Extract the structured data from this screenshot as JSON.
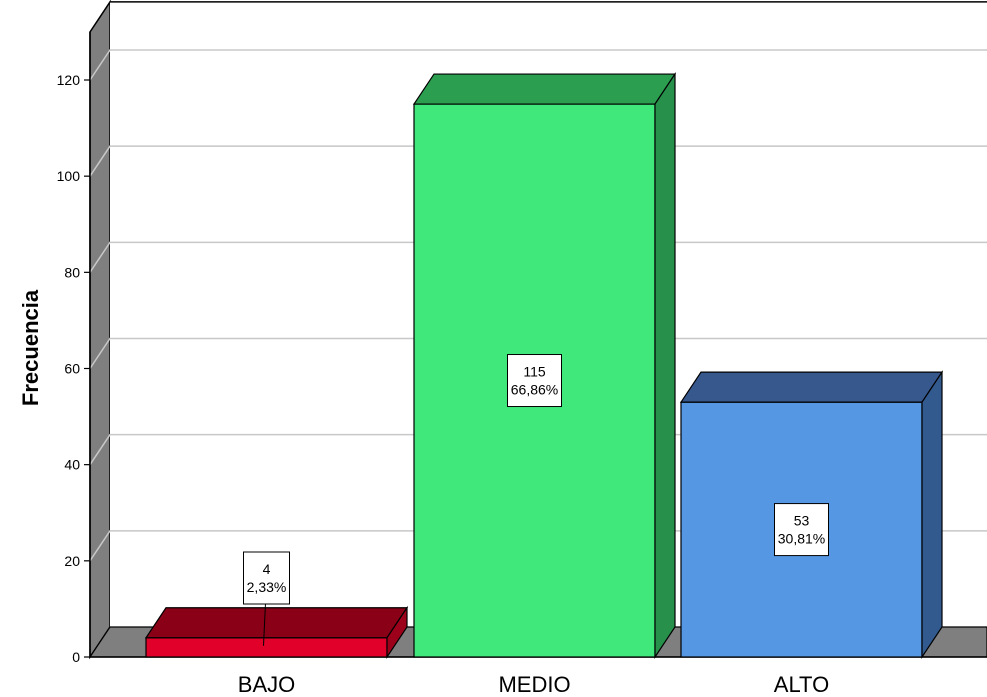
{
  "chart_data": {
    "type": "bar",
    "style": "3d",
    "categories": [
      "BAJO",
      "MEDIO",
      "ALTO"
    ],
    "values": [
      4,
      115,
      53
    ],
    "percent_labels": [
      "2,33%",
      "66,86%",
      "30,81%"
    ],
    "count_labels": [
      "4",
      "115",
      "53"
    ],
    "ylabel": "Frecuencia",
    "xlabel": "",
    "ylim": [
      0,
      130
    ],
    "yticks": [
      "0",
      "20",
      "40",
      "60",
      "80",
      "100",
      "120"
    ],
    "grid": true,
    "colors": {
      "bar_front": [
        "#E0002A",
        "#40E87C",
        "#5597E3"
      ],
      "bar_top": [
        "#8A0016",
        "#2B9E4F",
        "#36588D"
      ],
      "bar_side": [
        "#9C001B",
        "#27904A",
        "#335A8E"
      ],
      "floor": "#7F7F7F",
      "wall": "#FFFFFF",
      "gridline": "#C8C8C8"
    }
  }
}
